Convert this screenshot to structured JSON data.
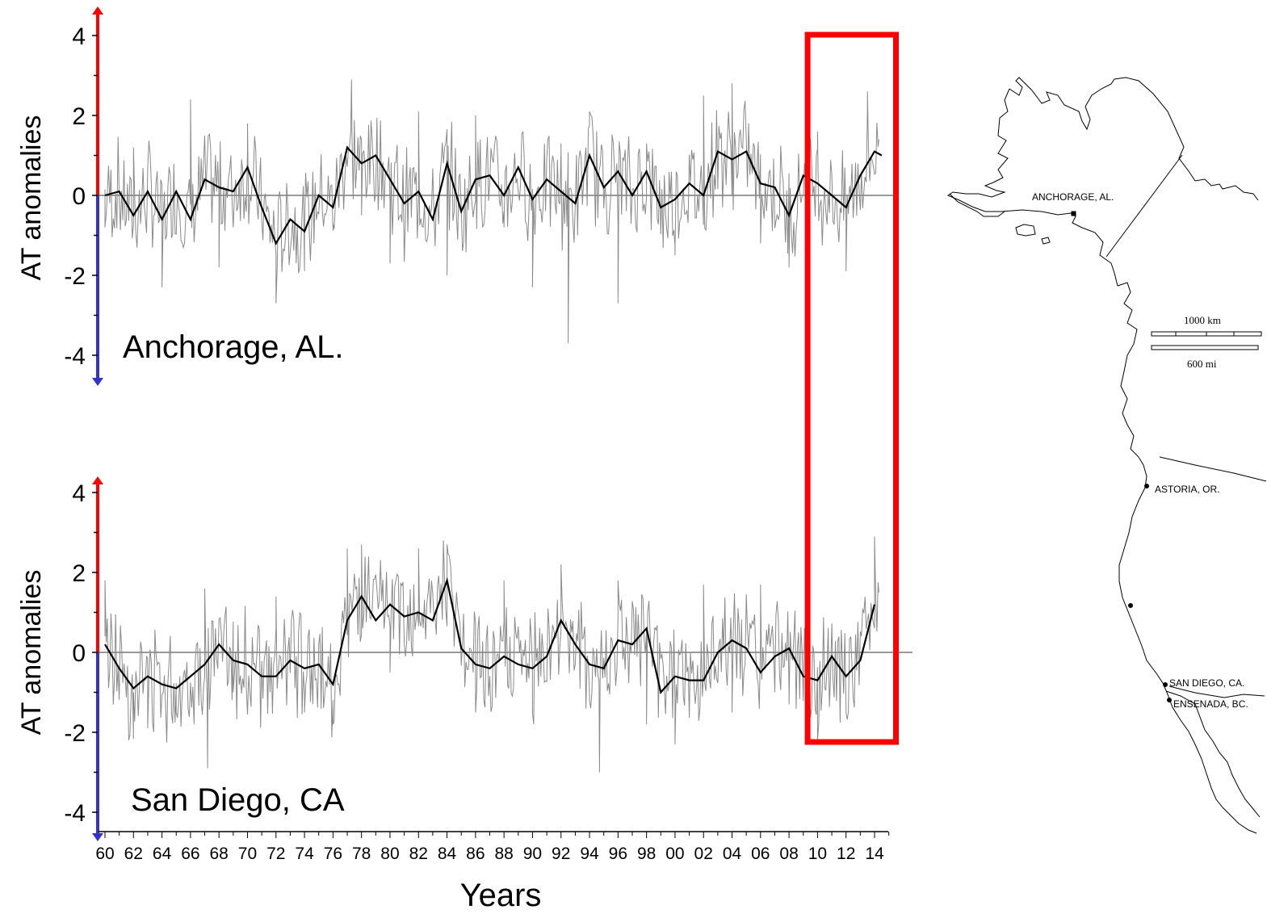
{
  "chart_data": [
    {
      "type": "line",
      "panel": "top",
      "site_label": "Anchorage, AL.",
      "ylabel": "AT anomalies",
      "ylim": [
        -4.5,
        4.5
      ],
      "yticks": [
        4,
        2,
        0,
        -2,
        -4
      ],
      "x_range": [
        1960,
        2014.6
      ],
      "series": [
        {
          "style": "monthly (thin grey)",
          "x": [
            1960,
            1962,
            1964,
            1966,
            1968,
            1970,
            1972,
            1974,
            1976,
            1977.3,
            1978,
            1980,
            1982,
            1984,
            1986,
            1988,
            1990,
            1992,
            1992.5,
            1994,
            1996,
            1998,
            2000,
            2002,
            2004,
            2006,
            2008,
            2010,
            2012,
            2013.5,
            2014.3
          ],
          "y": [
            -0.8,
            1.2,
            -2.3,
            2.4,
            -1.8,
            1.8,
            -2.7,
            -1.0,
            -0.7,
            2.9,
            -0.5,
            -1.7,
            2.1,
            -2.0,
            2.0,
            -0.8,
            -2.3,
            1.3,
            -3.7,
            2.1,
            -2.7,
            1.3,
            -1.5,
            2.5,
            2.8,
            -1.2,
            -1.8,
            1.6,
            -1.9,
            2.6,
            1.4
          ]
        },
        {
          "style": "smoothed (black)",
          "x": [
            1960,
            1961,
            1962,
            1963,
            1964,
            1965,
            1966,
            1967,
            1968,
            1969,
            1970,
            1971,
            1972,
            1973,
            1974,
            1975,
            1976,
            1977,
            1978,
            1979,
            1980,
            1981,
            1982,
            1983,
            1984,
            1985,
            1986,
            1987,
            1988,
            1989,
            1990,
            1991,
            1992,
            1993,
            1994,
            1995,
            1996,
            1997,
            1998,
            1999,
            2000,
            2001,
            2002,
            2003,
            2004,
            2005,
            2006,
            2007,
            2008,
            2009,
            2010,
            2011,
            2012,
            2013,
            2014,
            2014.5
          ],
          "y": [
            0.0,
            0.1,
            -0.5,
            0.1,
            -0.6,
            0.1,
            -0.6,
            0.4,
            0.2,
            0.1,
            0.7,
            -0.3,
            -1.2,
            -0.6,
            -0.9,
            0.0,
            -0.3,
            1.2,
            0.8,
            1.0,
            0.4,
            -0.2,
            0.1,
            -0.6,
            0.8,
            -0.4,
            0.4,
            0.5,
            0.0,
            0.7,
            -0.1,
            0.4,
            0.1,
            -0.2,
            1.0,
            0.2,
            0.6,
            0.0,
            0.6,
            -0.3,
            -0.1,
            0.3,
            0.0,
            1.1,
            0.9,
            1.1,
            0.3,
            0.2,
            -0.5,
            0.5,
            0.3,
            0.0,
            -0.3,
            0.5,
            1.1,
            1.0
          ]
        }
      ]
    },
    {
      "type": "line",
      "panel": "bottom",
      "site_label": "San Diego, CA",
      "ylabel": "AT anomalies",
      "xlabel": "Years",
      "ylim": [
        -4.5,
        4.5
      ],
      "yticks": [
        4,
        2,
        0,
        -2,
        -4
      ],
      "x_range": [
        1960,
        2014.6
      ],
      "categories": [
        "60",
        "62",
        "64",
        "66",
        "68",
        "70",
        "72",
        "74",
        "76",
        "78",
        "80",
        "82",
        "84",
        "86",
        "88",
        "90",
        "92",
        "94",
        "96",
        "98",
        "00",
        "02",
        "04",
        "06",
        "08",
        "10",
        "12",
        "14"
      ],
      "series": [
        {
          "style": "monthly (thin grey)",
          "x": [
            1960,
            1962,
            1963,
            1965,
            1967,
            1967.2,
            1969,
            1972,
            1974,
            1976,
            1977,
            1978,
            1980,
            1982,
            1984,
            1986,
            1988,
            1990,
            1992,
            1994,
            1994.7,
            1996,
            1998,
            2000,
            2002,
            2004,
            2006,
            2008,
            2010,
            2012,
            2014,
            2014.3
          ],
          "y": [
            1.8,
            -1.0,
            -1.9,
            -1.5,
            1.6,
            -2.9,
            -1.0,
            1.4,
            -1.5,
            -1.8,
            2.6,
            2.7,
            -0.5,
            2.6,
            2.7,
            -1.5,
            1.8,
            -1.5,
            2.2,
            -1.2,
            -3.0,
            1.8,
            -1.8,
            -2.3,
            1.7,
            -1.5,
            1.7,
            -1.3,
            -2.2,
            -1.5,
            2.9,
            1.5
          ]
        },
        {
          "style": "smoothed (black)",
          "x": [
            1960,
            1961,
            1962,
            1963,
            1964,
            1965,
            1966,
            1967,
            1968,
            1969,
            1970,
            1971,
            1972,
            1973,
            1974,
            1975,
            1976,
            1977,
            1978,
            1979,
            1980,
            1981,
            1982,
            1983,
            1984,
            1985,
            1986,
            1987,
            1988,
            1989,
            1990,
            1991,
            1992,
            1993,
            1994,
            1995,
            1996,
            1997,
            1998,
            1999,
            2000,
            2001,
            2002,
            2003,
            2004,
            2005,
            2006,
            2007,
            2008,
            2009,
            2010,
            2011,
            2012,
            2013,
            2014
          ],
          "y": [
            0.2,
            -0.4,
            -0.9,
            -0.6,
            -0.8,
            -0.9,
            -0.6,
            -0.3,
            0.2,
            -0.2,
            -0.3,
            -0.6,
            -0.6,
            -0.2,
            -0.4,
            -0.3,
            -0.8,
            0.8,
            1.4,
            0.8,
            1.2,
            0.9,
            1.0,
            0.8,
            1.8,
            0.1,
            -0.3,
            -0.4,
            -0.1,
            -0.3,
            -0.4,
            -0.1,
            0.8,
            0.2,
            -0.3,
            -0.4,
            0.3,
            0.2,
            0.6,
            -1.0,
            -0.6,
            -0.7,
            -0.7,
            0.0,
            0.3,
            0.1,
            -0.5,
            -0.1,
            0.1,
            -0.6,
            -0.7,
            -0.1,
            -0.6,
            -0.2,
            1.2
          ]
        }
      ]
    }
  ],
  "highlight_box": {
    "color": "#ff0000",
    "x_from": 2009.3,
    "x_to": 2015.5
  },
  "axis_colors": {
    "positive": "#ff0000",
    "negative": "#3333cc"
  },
  "map": {
    "labels": [
      "ANCHORAGE, AL.",
      "ASTORIA, OR.",
      "SAN DIEGO, CA.",
      "ENSENADA, BC."
    ],
    "scale": {
      "km": "1000 km",
      "mi": "600 mi"
    }
  }
}
